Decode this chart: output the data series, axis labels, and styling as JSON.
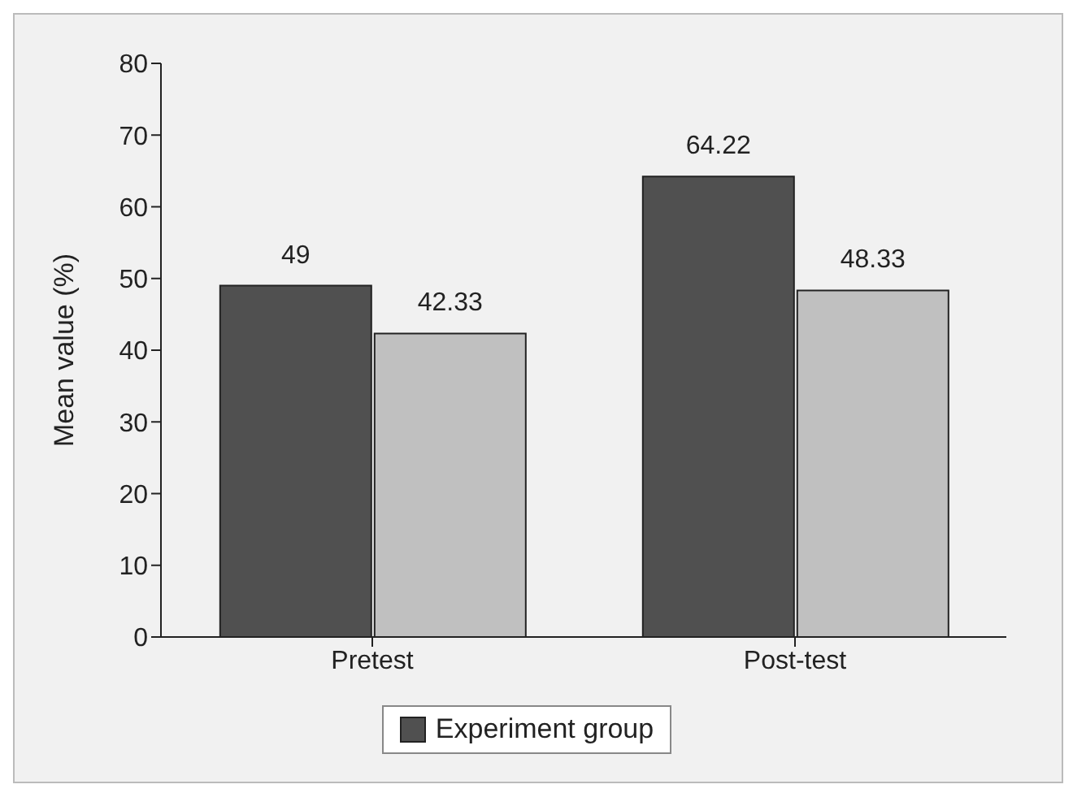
{
  "chart_data": {
    "type": "bar",
    "ylabel": "Mean value (%)",
    "categories": [
      "Pretest",
      "Post-test"
    ],
    "series": [
      {
        "name": "Experiment group",
        "color": "#505050",
        "values": [
          49,
          64.22
        ]
      },
      {
        "color": "#c0c0c0",
        "values": [
          42.33,
          48.33
        ]
      }
    ],
    "ylim": [
      0,
      80
    ],
    "yticks": [
      0,
      10,
      20,
      30,
      40,
      50,
      60,
      70,
      80
    ],
    "data_labels": true,
    "legend": "bottom",
    "grid": false
  }
}
